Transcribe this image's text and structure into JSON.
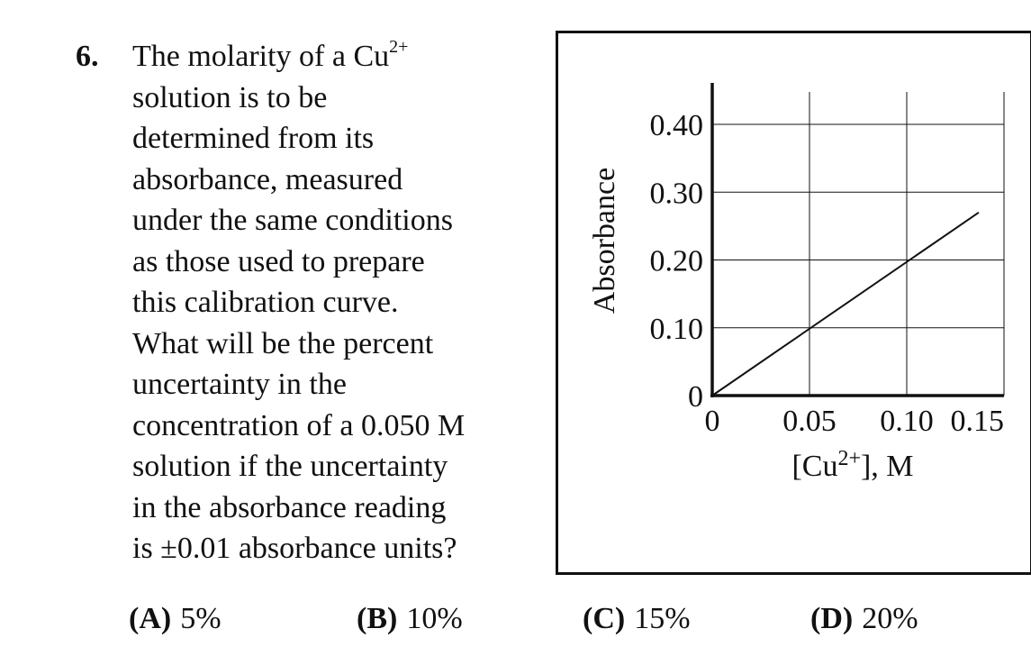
{
  "question": {
    "number": "6.",
    "lines": [
      {
        "text": "The molarity of a Cu",
        "sup": "2+"
      },
      {
        "text": "solution is to be"
      },
      {
        "text": "determined from its"
      },
      {
        "text": "absorbance, measured"
      },
      {
        "text": "under the same conditions"
      },
      {
        "text": "as those used to prepare"
      },
      {
        "text": "this calibration curve."
      },
      {
        "text": "What will be the percent"
      },
      {
        "text": "uncertainty in the"
      },
      {
        "text": "concentration of a 0.050 M"
      },
      {
        "text": "solution if the uncertainty"
      },
      {
        "text": "in the absorbance reading"
      },
      {
        "text": "is ±0.01 absorbance units?"
      }
    ]
  },
  "choices": [
    {
      "letter": "(A)",
      "value": "5%"
    },
    {
      "letter": "(B)",
      "value": "10%"
    },
    {
      "letter": "(C)",
      "value": "15%"
    },
    {
      "letter": "(D)",
      "value": "20%"
    }
  ],
  "chart_data": {
    "type": "line",
    "title": "",
    "xlabel_prefix": "[Cu",
    "xlabel_sup": "2+",
    "xlabel_suffix": "], M",
    "ylabel": "Absorbance",
    "xlim": [
      0,
      0.15
    ],
    "ylim": [
      0,
      0.4
    ],
    "x_ticks": [
      0,
      0.05,
      0.1,
      0.15
    ],
    "x_tick_labels": [
      "0",
      "0.05",
      "0.10",
      "0.15"
    ],
    "y_ticks": [
      0,
      0.1,
      0.2,
      0.3,
      0.4
    ],
    "y_tick_labels": [
      "0",
      "0.10",
      "0.20",
      "0.30",
      "0.40"
    ],
    "grid": true,
    "series": [
      {
        "x": [
          0,
          0.137
        ],
        "y": [
          0,
          0.27
        ]
      }
    ]
  }
}
